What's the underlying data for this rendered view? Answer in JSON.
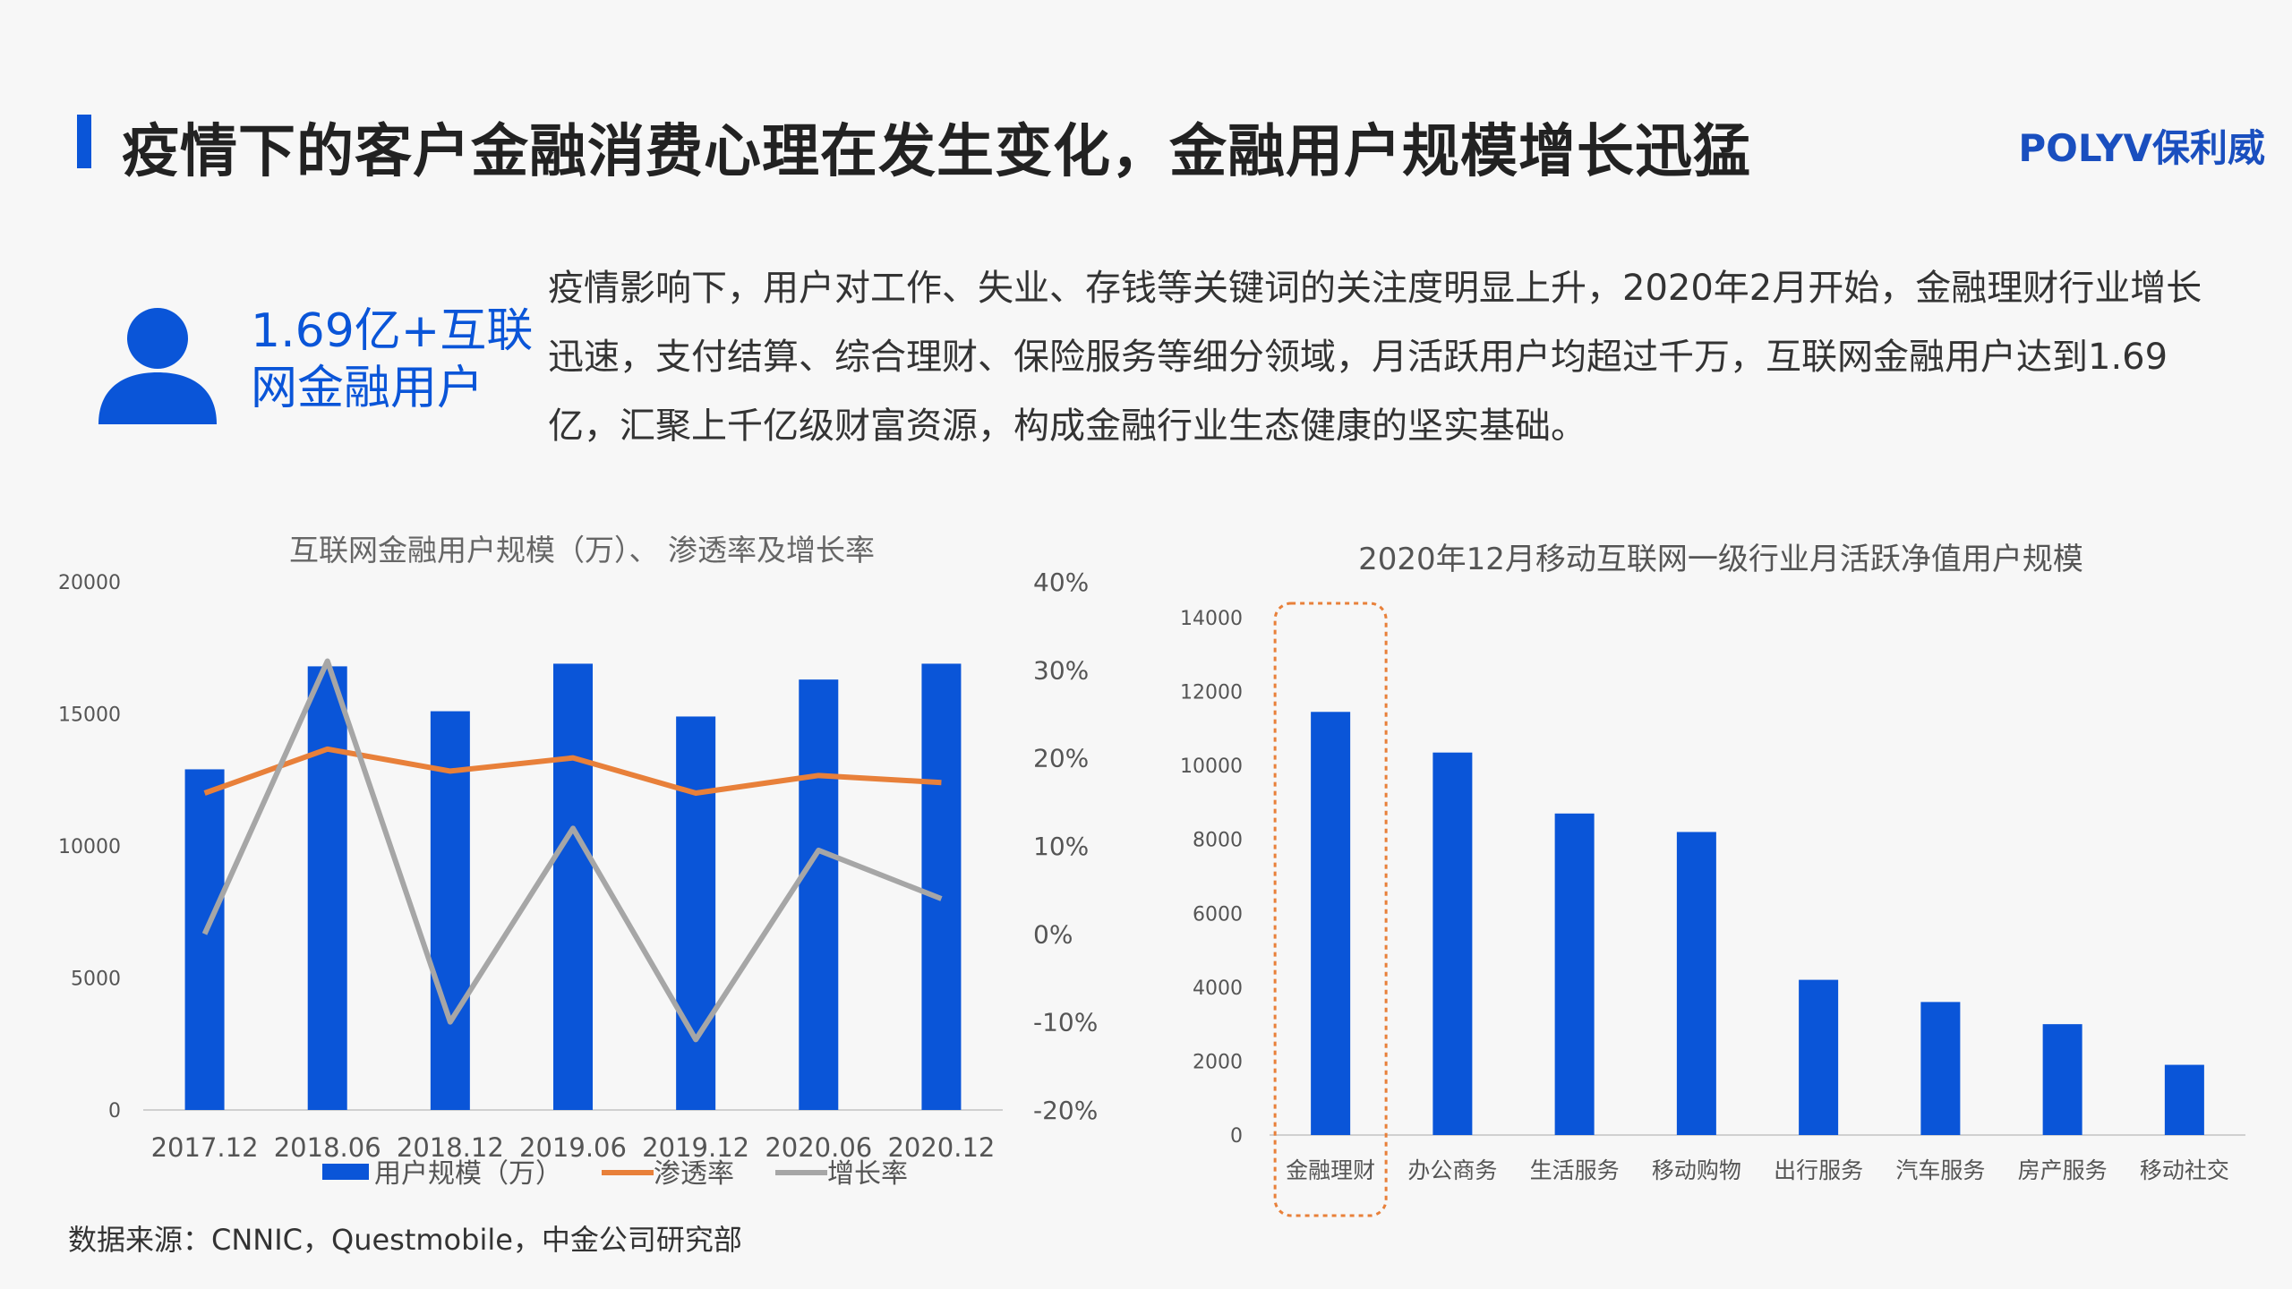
{
  "header": {
    "title": "疫情下的客户金融消费心理在发生变化，金融用户规模增长迅猛",
    "logo": "POLYV保利威"
  },
  "highlight": {
    "icon": "user-icon",
    "line1": "1.69亿+互联",
    "line2": "网金融用户"
  },
  "description": "疫情影响下，用户对工作、失业、存钱等关键词的关注度明显上升，2020年2月开始，金融理财行业增长迅速，支付结算、综合理财、保险服务等细分领域，月活跃用户均超过千万，互联网金融用户达到1.69亿，汇聚上千亿级财富资源，构成金融行业生态健康的坚实基础。",
  "source": "数据来源：CNNIC，Questmobile，中金公司研究部",
  "colors": {
    "accent": "#0a55d8",
    "orange": "#e8803a",
    "gray": "#a6a6a6",
    "highlight_border": "#e8803a"
  },
  "chart_data": [
    {
      "type": "bar",
      "title": "互联网金融用户规模（万）、 渗透率及增长率",
      "categories": [
        "2017.12",
        "2018.06",
        "2018.12",
        "2019.06",
        "2019.12",
        "2020.06",
        "2020.12"
      ],
      "ylim": [
        0,
        20000
      ],
      "yticks": [
        "0",
        "5000",
        "10000",
        "15000",
        "20000"
      ],
      "y2lim": [
        -20,
        40
      ],
      "y2ticks": [
        "-20%",
        "-10%",
        "0%",
        "10%",
        "20%",
        "30%",
        "40%"
      ],
      "series": [
        {
          "name": "用户规模（万）",
          "type": "bar",
          "axis": "left",
          "values": [
            12900,
            16800,
            15100,
            16900,
            14900,
            16300,
            16900
          ]
        },
        {
          "name": "渗透率",
          "type": "line",
          "axis": "right",
          "values": [
            16,
            21,
            18.5,
            20,
            16,
            18,
            17.2
          ]
        },
        {
          "name": "增长率",
          "type": "line",
          "axis": "right",
          "values": [
            0,
            31,
            -10,
            12,
            -12,
            9.5,
            4
          ]
        }
      ],
      "legend": "bottom"
    },
    {
      "type": "bar",
      "title": "2020年12月移动互联网一级行业月活跃净值用户规模",
      "categories": [
        "金融理财",
        "办公商务",
        "生活服务",
        "移动购物",
        "出行服务",
        "汽车服务",
        "房产服务",
        "移动社交"
      ],
      "values": [
        11450,
        10350,
        8700,
        8200,
        4200,
        3600,
        3000,
        1900
      ],
      "ylim": [
        0,
        14000
      ],
      "yticks": [
        "0",
        "2000",
        "4000",
        "6000",
        "8000",
        "10000",
        "12000",
        "14000"
      ],
      "highlighted_category": "金融理财"
    }
  ]
}
